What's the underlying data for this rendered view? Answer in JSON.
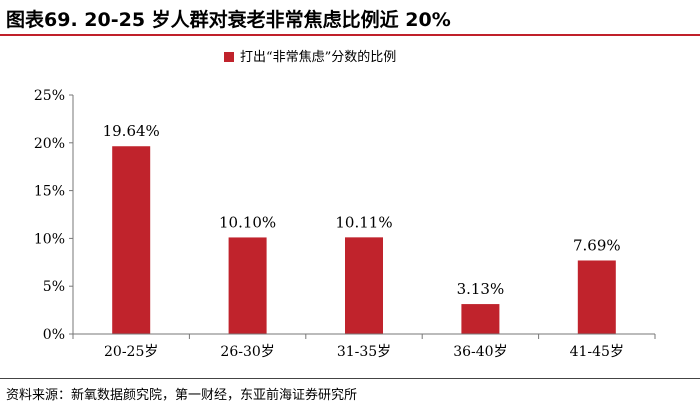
{
  "header": {
    "title": "图表69. 20-25 岁人群对衰老非常焦虑比例近 20%"
  },
  "footer": {
    "source": "资料来源：新氧数据颜究院，第一财经，东亚前海证券研究所"
  },
  "chart_data": {
    "type": "bar",
    "categories": [
      "20-25岁",
      "26-30岁",
      "31-35岁",
      "36-40岁",
      "41-45岁"
    ],
    "series": [
      {
        "name": "打出“非常焦虑”分数的比例",
        "values": [
          19.64,
          10.1,
          10.11,
          3.13,
          7.69
        ]
      }
    ],
    "data_labels": [
      "19.64%",
      "10.10%",
      "10.11%",
      "3.13%",
      "7.69%"
    ],
    "ylim": [
      0,
      25
    ],
    "yticks": [
      0,
      5,
      10,
      15,
      20,
      25
    ],
    "ytick_labels": [
      "0%",
      "5%",
      "10%",
      "15%",
      "20%",
      "25%"
    ],
    "legend_position": "top-center",
    "grid": false,
    "bar_color": "#c0232c"
  }
}
